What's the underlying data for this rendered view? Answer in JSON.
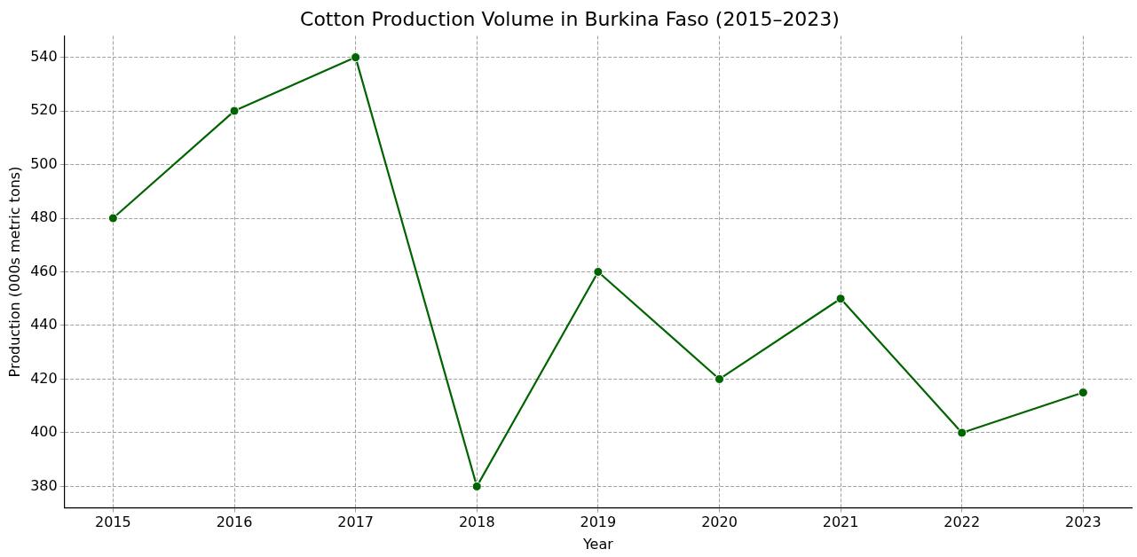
{
  "chart_data": {
    "type": "line",
    "title": "Cotton Production Volume in Burkina Faso (2015–2023)",
    "xlabel": "Year",
    "ylabel": "Production (000s metric tons)",
    "x": [
      2015,
      2016,
      2017,
      2018,
      2019,
      2020,
      2021,
      2022,
      2023
    ],
    "series": [
      {
        "color": "#006400",
        "values": [
          480,
          520,
          540,
          380,
          460,
          420,
          450,
          400,
          415
        ]
      }
    ],
    "xlim": [
      2014.6,
      2023.4
    ],
    "xticks": [
      2015,
      2016,
      2017,
      2018,
      2019,
      2020,
      2021,
      2022,
      2023
    ],
    "ylim": [
      372,
      548
    ],
    "yticks": [
      380,
      400,
      420,
      440,
      460,
      480,
      500,
      520,
      540
    ],
    "grid": true,
    "legend": false,
    "marker": "circle",
    "line_style": "solid"
  }
}
